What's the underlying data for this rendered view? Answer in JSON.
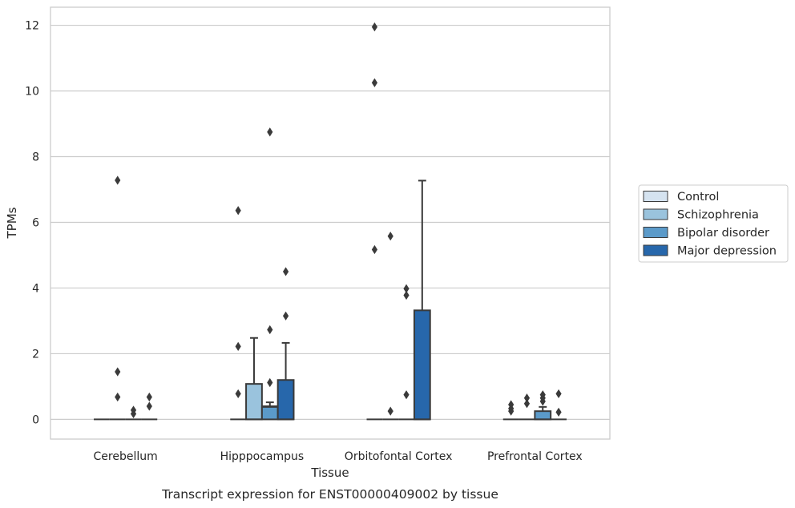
{
  "caption": "Transcript expression for ENST00000409002 by tissue",
  "colors": {
    "Control": "#d5e3f0",
    "Schizophrenia": "#9ac3dd",
    "Bipolar disorder": "#5b9ac9",
    "Major depression": "#2767ab",
    "grid": "#cccccc",
    "line": "#3a3a3a"
  },
  "chart_data": {
    "type": "box",
    "xlabel": "Tissue",
    "ylabel": "TPMs",
    "ylim": [
      -0.6,
      12.55
    ],
    "yticks": [
      0,
      2,
      4,
      6,
      8,
      10,
      12
    ],
    "grid": "horizontal",
    "legend_position": "right",
    "categories": [
      "Cerebellum",
      "Hipppocampus",
      "Orbitofontal Cortex",
      "Prefrontal Cortex"
    ],
    "series": [
      {
        "name": "Control",
        "boxes": [
          {
            "q1": 0,
            "median": 0,
            "q3": 0,
            "whisker_low": 0,
            "whisker_high": 0,
            "outliers": []
          },
          {
            "q1": 0,
            "median": 0,
            "q3": 0,
            "whisker_low": 0,
            "whisker_high": 0,
            "outliers": [
              0.78,
              2.22,
              6.36
            ]
          },
          {
            "q1": 0,
            "median": 0,
            "q3": 0,
            "whisker_low": 0,
            "whisker_high": 0,
            "outliers": [
              5.17,
              10.25,
              11.95
            ]
          },
          {
            "q1": 0,
            "median": 0,
            "q3": 0,
            "whisker_low": 0,
            "whisker_high": 0,
            "outliers": [
              0.25,
              0.33,
              0.45
            ]
          }
        ]
      },
      {
        "name": "Schizophrenia",
        "boxes": [
          {
            "q1": 0,
            "median": 0,
            "q3": 0,
            "whisker_low": 0,
            "whisker_high": 0,
            "outliers": [
              0.68,
              1.45,
              7.28
            ]
          },
          {
            "q1": 0,
            "median": 0,
            "q3": 1.08,
            "whisker_low": 0,
            "whisker_high": 2.48,
            "outliers": []
          },
          {
            "q1": 0,
            "median": 0,
            "q3": 0,
            "whisker_low": 0,
            "whisker_high": 0,
            "outliers": [
              0.25,
              5.58
            ]
          },
          {
            "q1": 0,
            "median": 0,
            "q3": 0,
            "whisker_low": 0,
            "whisker_high": 0,
            "outliers": [
              0.48,
              0.65
            ]
          }
        ]
      },
      {
        "name": "Bipolar disorder",
        "boxes": [
          {
            "q1": 0,
            "median": 0,
            "q3": 0,
            "whisker_low": 0,
            "whisker_high": 0,
            "outliers": [
              0.17,
              0.28
            ]
          },
          {
            "q1": 0,
            "median": 0.38,
            "q3": 0.4,
            "whisker_low": 0,
            "whisker_high": 0.52,
            "outliers": [
              1.12,
              2.73,
              8.75
            ]
          },
          {
            "q1": 0,
            "median": 0,
            "q3": 0,
            "whisker_low": 0,
            "whisker_high": 0,
            "outliers": [
              0.75,
              3.78,
              3.98
            ]
          },
          {
            "q1": 0,
            "median": 0,
            "q3": 0.25,
            "whisker_low": 0,
            "whisker_high": 0.38,
            "outliers": [
              0.55,
              0.65,
              0.75
            ]
          }
        ]
      },
      {
        "name": "Major depression",
        "boxes": [
          {
            "q1": 0,
            "median": 0,
            "q3": 0,
            "whisker_low": 0,
            "whisker_high": 0,
            "outliers": [
              0.4,
              0.68
            ]
          },
          {
            "q1": 0,
            "median": 0,
            "q3": 1.2,
            "whisker_low": 0,
            "whisker_high": 2.33,
            "outliers": [
              3.15,
              4.5
            ]
          },
          {
            "q1": 0,
            "median": 0,
            "q3": 3.32,
            "whisker_low": 0,
            "whisker_high": 7.27,
            "outliers": []
          },
          {
            "q1": 0,
            "median": 0,
            "q3": 0,
            "whisker_low": 0,
            "whisker_high": 0,
            "outliers": [
              0.22,
              0.78
            ]
          }
        ]
      }
    ]
  }
}
